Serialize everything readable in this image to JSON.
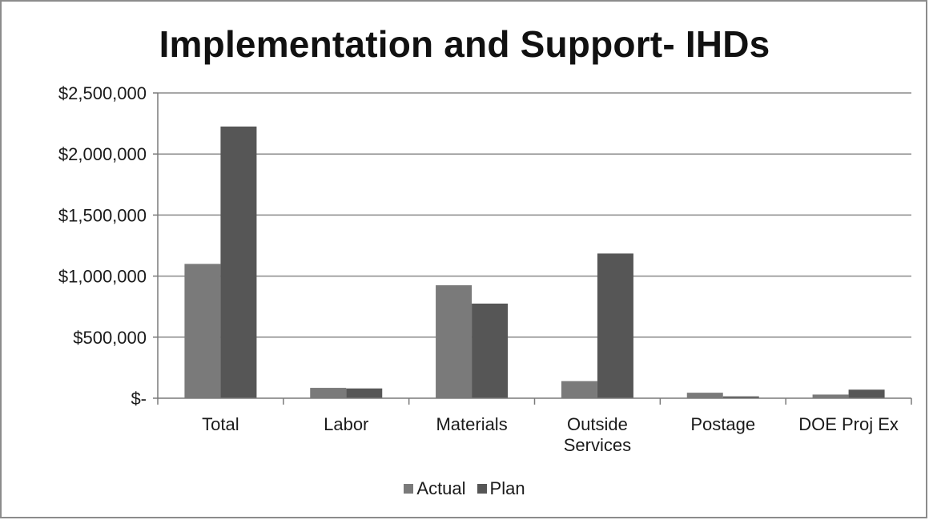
{
  "chart_data": {
    "type": "bar",
    "title": "Implementation and Support- IHDs",
    "xlabel": "",
    "ylabel": "",
    "categories": [
      [
        "Total"
      ],
      [
        "Labor"
      ],
      [
        "Materials"
      ],
      [
        "Outside",
        "Services"
      ],
      [
        "Postage"
      ],
      [
        "DOE Proj Ex"
      ]
    ],
    "series": [
      {
        "name": "Actual",
        "color": "#7a7a7a",
        "values": [
          1100000,
          85000,
          925000,
          140000,
          45000,
          30000
        ]
      },
      {
        "name": "Plan",
        "color": "#565656",
        "values": [
          2225000,
          80000,
          775000,
          1185000,
          15000,
          70000
        ]
      }
    ],
    "yticks": [
      0,
      500000,
      1000000,
      1500000,
      2000000,
      2500000
    ],
    "ytick_labels": [
      "$-",
      "$500,000",
      "$1,000,000",
      "$1,500,000",
      "$2,000,000",
      "$2,500,000"
    ],
    "ylim": [
      0,
      2500000
    ],
    "grid": true,
    "legend_position": "bottom"
  }
}
